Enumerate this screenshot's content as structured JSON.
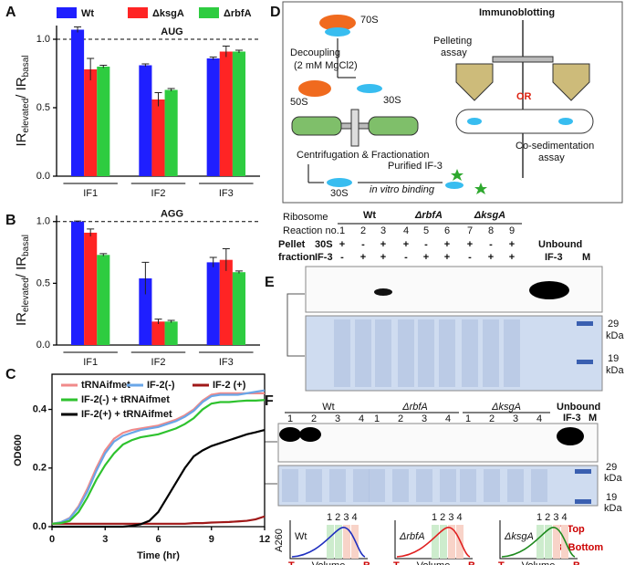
{
  "panel_labels": [
    "A",
    "B",
    "C",
    "D",
    "E",
    "F"
  ],
  "chart_data": [
    {
      "type": "bar",
      "title": "AUG",
      "y_label": [
        "IR",
        "elevated",
        "/ IR",
        "basal"
      ],
      "categories": [
        "IF1",
        "IF2",
        "IF3"
      ],
      "series": [
        {
          "name": "Wt",
          "color": "#1f1fff",
          "values": [
            1.07,
            0.81,
            0.86
          ],
          "errors": [
            0.02,
            0.01,
            0.01
          ]
        },
        {
          "name": "ΔksgA",
          "color": "#ff2424",
          "values": [
            0.78,
            0.56,
            0.91
          ],
          "errors": [
            0.08,
            0.05,
            0.04
          ]
        },
        {
          "name": "ΔrbfA",
          "color": "#2ecc40",
          "values": [
            0.8,
            0.63,
            0.91
          ],
          "errors": [
            0.01,
            0.01,
            0.01
          ]
        }
      ],
      "reference_line": 1.0,
      "ylim": [
        0,
        1.1
      ],
      "yticks": [
        {
          "value": 0,
          "label": "0.0"
        },
        0.5,
        {
          "value": 1,
          "label": "1.0"
        }
      ]
    },
    {
      "type": "bar",
      "title": "AGG",
      "y_label": [
        "IR",
        "elevated",
        "/ IR",
        "basal"
      ],
      "categories": [
        "IF1",
        "IF2",
        "IF3"
      ],
      "series": [
        {
          "color": "#1f1fff",
          "values": [
            1.0,
            0.54,
            0.67
          ],
          "errors": [
            0.005,
            0.13,
            0.04
          ]
        },
        {
          "color": "#ff2424",
          "values": [
            0.91,
            0.19,
            0.69
          ],
          "errors": [
            0.03,
            0.02,
            0.09
          ]
        },
        {
          "color": "#2ecc40",
          "values": [
            0.73,
            0.19,
            0.59
          ],
          "errors": [
            0.01,
            0.01,
            0.01
          ]
        }
      ],
      "reference_line": 1.0,
      "ylim": [
        0,
        1.05
      ],
      "yticks": [
        {
          "value": 0,
          "label": "0.0"
        },
        0.5,
        {
          "value": 1,
          "label": "1.0"
        }
      ]
    },
    {
      "type": "line",
      "x_label": "Time (hr)",
      "y_label": "OD600",
      "x": [
        0,
        0.5,
        1,
        1.5,
        2,
        2.5,
        3,
        3.5,
        4,
        4.5,
        5,
        5.5,
        6,
        6.5,
        7,
        7.5,
        8,
        8.5,
        9,
        9.5,
        10,
        10.5,
        11,
        11.5,
        12
      ],
      "series": [
        {
          "name": "tRNAifmet",
          "color": "#f08a8a",
          "values": [
            0.01,
            0.015,
            0.03,
            0.07,
            0.13,
            0.2,
            0.26,
            0.3,
            0.32,
            0.33,
            0.335,
            0.34,
            0.345,
            0.355,
            0.365,
            0.38,
            0.4,
            0.43,
            0.45,
            0.455,
            0.455,
            0.455,
            0.455,
            0.455,
            0.455
          ]
        },
        {
          "name": "IF-2(-)",
          "color": "#6aa6e8",
          "values": [
            0.01,
            0.015,
            0.028,
            0.065,
            0.12,
            0.19,
            0.25,
            0.29,
            0.31,
            0.32,
            0.33,
            0.335,
            0.34,
            0.35,
            0.36,
            0.375,
            0.395,
            0.425,
            0.445,
            0.45,
            0.45,
            0.45,
            0.455,
            0.46,
            0.465
          ]
        },
        {
          "name": "IF-2 (+)",
          "color": "#a01818",
          "values": [
            0.01,
            0.01,
            0.01,
            0.01,
            0.01,
            0.01,
            0.01,
            0.01,
            0.01,
            0.01,
            0.01,
            0.01,
            0.01,
            0.01,
            0.01,
            0.01,
            0.012,
            0.012,
            0.014,
            0.015,
            0.016,
            0.018,
            0.02,
            0.025,
            0.035
          ]
        },
        {
          "name": "IF-2(-) + tRNAifmet",
          "color": "#2ec22e",
          "values": [
            0.01,
            0.012,
            0.02,
            0.05,
            0.1,
            0.16,
            0.21,
            0.25,
            0.28,
            0.295,
            0.305,
            0.31,
            0.315,
            0.325,
            0.335,
            0.35,
            0.37,
            0.4,
            0.42,
            0.425,
            0.425,
            0.428,
            0.43,
            0.43,
            0.432
          ]
        },
        {
          "name": "IF-2(+) + tRNAifmet",
          "color": "#000000",
          "values": [
            0,
            0,
            0,
            0,
            0,
            0,
            0,
            0,
            0,
            0.003,
            0.008,
            0.02,
            0.05,
            0.1,
            0.15,
            0.2,
            0.24,
            0.26,
            0.275,
            0.285,
            0.295,
            0.305,
            0.315,
            0.322,
            0.33
          ]
        }
      ],
      "xlim": [
        0,
        12
      ],
      "xticks": [
        0,
        3,
        6,
        9,
        12
      ],
      "ylim": [
        0,
        0.52
      ],
      "yticks": [
        {
          "value": 0,
          "label": "0.0"
        },
        0.2,
        0.4
      ]
    }
  ],
  "diagram": {
    "ribosome": "70S",
    "decoupling": "Decoupling",
    "mg": "(2 mM MgCl2)",
    "large": "50S",
    "small": "30S",
    "centrifugation": "Centrifugation & Fractionation",
    "small2": "30S",
    "purified": "Purified IF-3",
    "binding": "in vitro binding",
    "immunoblotting": "Immunoblotting",
    "pelleting": "Pelleting",
    "assay": "assay",
    "or": "OR",
    "cosed": "Co-sedimentation",
    "assay2": "assay"
  },
  "gel_e": {
    "ribosome": "Ribosome",
    "strains": [
      "Wt",
      "ΔrbfA",
      "ΔksgA"
    ],
    "reaction": "Reaction no.",
    "lanes": [
      "1",
      "2",
      "3",
      "4",
      "5",
      "6",
      "7",
      "8",
      "9"
    ],
    "pellet": "Pellet",
    "fraction": "fraction",
    "rows": [
      {
        "label": "30S",
        "signs": [
          "+",
          "-",
          "+",
          "+",
          "-",
          "+",
          "+",
          "-",
          "+"
        ]
      },
      {
        "label": "IF-3",
        "signs": [
          "-",
          "+",
          "+",
          "-",
          "+",
          "+",
          "-",
          "+",
          "+"
        ]
      }
    ],
    "unbound": "Unbound",
    "if3": "IF-3",
    "marker": "M",
    "kda": [
      {
        "size": "29",
        "unit": "kDa"
      },
      {
        "size": "19",
        "unit": "kDa"
      }
    ]
  },
  "gel_f": {
    "strains": [
      "Wt",
      "ΔrbfA",
      "ΔksgA"
    ],
    "lanes": [
      "1",
      "2",
      "3",
      "4"
    ],
    "unbound": "Unbound",
    "if3": "IF-3",
    "marker": "M",
    "kda": [
      {
        "size": "29",
        "unit": "kDa"
      },
      {
        "size": "19",
        "unit": "kDa"
      }
    ],
    "profile_y": "A260",
    "profile_x": "Volume",
    "top": "T",
    "bottom": "B",
    "fractions": "1 2 3 4",
    "top_key": "T :Top",
    "bottom_key": "B :Bottom"
  }
}
